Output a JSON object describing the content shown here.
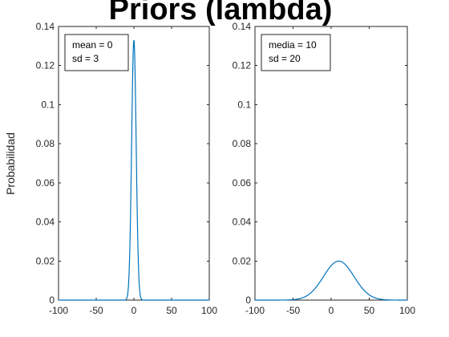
{
  "figure": {
    "title": "Priors (lambda)",
    "ylabel": "Probabilidad"
  },
  "chart_data": [
    {
      "type": "line",
      "title": "",
      "xlabel": "",
      "ylabel": "Probabilidad",
      "xlim": [
        -100,
        100
      ],
      "ylim": [
        0,
        0.14
      ],
      "xticks": [
        -100,
        -50,
        0,
        50,
        100
      ],
      "yticks": [
        0,
        0.02,
        0.04,
        0.06,
        0.08,
        0.1,
        0.12,
        0.14
      ],
      "xtick_labels": [
        "-100",
        "-50",
        "0",
        "50",
        "100"
      ],
      "ytick_labels": [
        "0",
        "0.02",
        "0.04",
        "0.06",
        "0.08",
        "0.1",
        "0.12",
        "0.14"
      ],
      "grid": false,
      "legend_placement": "top-left",
      "annotation": [
        "mean = 0",
        "sd = 3"
      ],
      "series": [
        {
          "distribution": "normal",
          "mean": 0,
          "sd": 3,
          "peak": 0.133,
          "color": "#0072BD"
        }
      ]
    },
    {
      "type": "line",
      "title": "",
      "xlabel": "",
      "ylabel": "",
      "xlim": [
        -100,
        100
      ],
      "ylim": [
        0,
        0.14
      ],
      "xticks": [
        -100,
        -50,
        0,
        50,
        100
      ],
      "yticks": [
        0,
        0.02,
        0.04,
        0.06,
        0.08,
        0.1,
        0.12,
        0.14
      ],
      "xtick_labels": [
        "-100",
        "-50",
        "0",
        "50",
        "100"
      ],
      "ytick_labels": [
        "0",
        "0.02",
        "0.04",
        "0.06",
        "0.08",
        "0.1",
        "0.12",
        "0.14"
      ],
      "grid": false,
      "legend_placement": "top-left",
      "annotation": [
        "media = 10",
        "sd = 20"
      ],
      "series": [
        {
          "distribution": "normal",
          "mean": 10,
          "sd": 20,
          "peak": 0.0199,
          "color": "#0072BD"
        }
      ]
    }
  ]
}
